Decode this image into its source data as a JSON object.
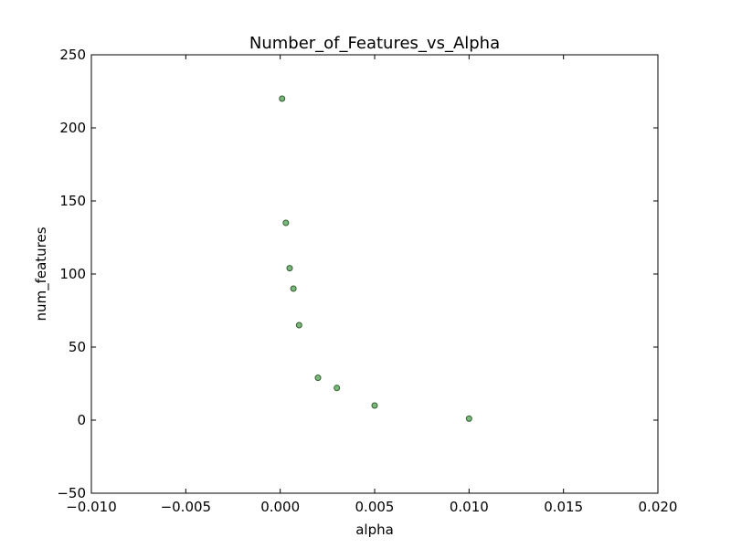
{
  "chart_data": {
    "type": "scatter",
    "title": "Number_of_Features_vs_Alpha",
    "xlabel": "alpha",
    "ylabel": "num_features",
    "xlim": [
      -0.01,
      0.02
    ],
    "ylim": [
      -50,
      250
    ],
    "xticks": [
      -0.01,
      -0.005,
      0.0,
      0.005,
      0.01,
      0.015,
      0.02
    ],
    "xtick_labels": [
      "−0.010",
      "−0.005",
      "0.000",
      "0.005",
      "0.010",
      "0.015",
      "0.020"
    ],
    "yticks": [
      -50,
      0,
      50,
      100,
      150,
      200,
      250
    ],
    "ytick_labels": [
      "−50",
      "0",
      "50",
      "100",
      "150",
      "200",
      "250"
    ],
    "grid": false,
    "series": [
      {
        "color": "#5aa55a",
        "edge_color": "#2f5f2f",
        "points": [
          {
            "x": 0.0001,
            "y": 220
          },
          {
            "x": 0.0003,
            "y": 135
          },
          {
            "x": 0.0005,
            "y": 104
          },
          {
            "x": 0.0007,
            "y": 90
          },
          {
            "x": 0.001,
            "y": 65
          },
          {
            "x": 0.002,
            "y": 29
          },
          {
            "x": 0.003,
            "y": 22
          },
          {
            "x": 0.005,
            "y": 10
          },
          {
            "x": 0.01,
            "y": 1
          }
        ]
      }
    ]
  }
}
